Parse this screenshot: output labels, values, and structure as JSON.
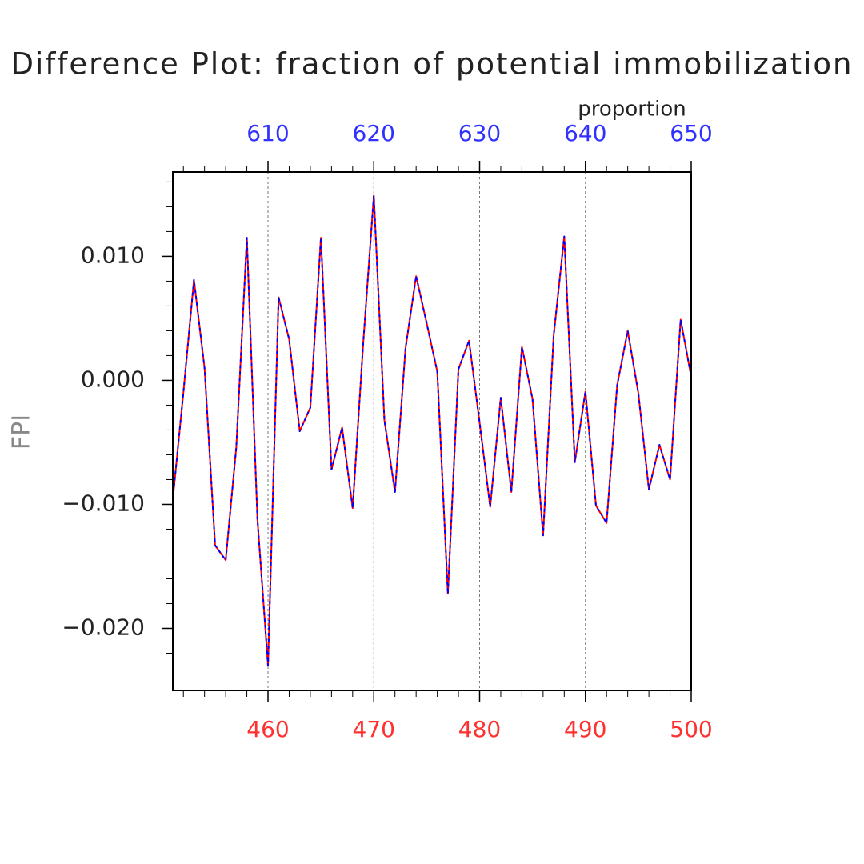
{
  "chart_data": {
    "type": "line",
    "title": "Difference Plot: fraction of potential immobilization",
    "ylabel": "FPI",
    "x2label": "proportion",
    "x": [
      451,
      452,
      453,
      454,
      455,
      456,
      457,
      458,
      459,
      460,
      461,
      462,
      463,
      464,
      465,
      466,
      467,
      468,
      469,
      470,
      471,
      472,
      473,
      474,
      475,
      476,
      477,
      478,
      479,
      480,
      481,
      482,
      483,
      484,
      485,
      486,
      487,
      488,
      489,
      490,
      491,
      492,
      493,
      494,
      495,
      496,
      497,
      498,
      499,
      500
    ],
    "series": [
      {
        "color": "#ff0000",
        "dash": false,
        "values": [
          -0.0096,
          -0.001,
          0.0081,
          0.001,
          -0.0133,
          -0.0145,
          -0.0054,
          0.0115,
          -0.0112,
          -0.023,
          0.0067,
          0.0033,
          -0.0041,
          -0.0022,
          0.0115,
          -0.0072,
          -0.0038,
          -0.0103,
          0.003,
          0.0149,
          -0.0032,
          -0.009,
          0.0026,
          0.0084,
          0.0046,
          0.0007,
          -0.0172,
          0.0009,
          0.0032,
          -0.0034,
          -0.0102,
          -0.0014,
          -0.009,
          0.0027,
          -0.0015,
          -0.0125,
          0.0036,
          0.0116,
          -0.0066,
          -0.0009,
          -0.0101,
          -0.0115,
          -0.0004,
          0.004,
          -0.001,
          -0.0088,
          -0.0052,
          -0.008,
          0.0049,
          0.0003
        ]
      },
      {
        "color": "#0000ff",
        "dash": true,
        "values": [
          -0.0096,
          -0.001,
          0.0081,
          0.001,
          -0.0133,
          -0.0145,
          -0.0054,
          0.0115,
          -0.0112,
          -0.023,
          0.0067,
          0.0033,
          -0.0041,
          -0.0022,
          0.0115,
          -0.0072,
          -0.0038,
          -0.0103,
          0.003,
          0.0149,
          -0.0032,
          -0.009,
          0.0026,
          0.0084,
          0.0046,
          0.0007,
          -0.0172,
          0.0009,
          0.0032,
          -0.0034,
          -0.0102,
          -0.0014,
          -0.009,
          0.0027,
          -0.0015,
          -0.0125,
          0.0036,
          0.0116,
          -0.0066,
          -0.0009,
          -0.0101,
          -0.0115,
          -0.0004,
          0.004,
          -0.001,
          -0.0088,
          -0.0052,
          -0.008,
          0.0049,
          0.0003
        ]
      }
    ],
    "xlim": [
      451,
      500
    ],
    "xticks": [
      460,
      470,
      480,
      490,
      500
    ],
    "xminorticks": [
      452,
      454,
      456,
      458,
      462,
      464,
      466,
      468,
      472,
      474,
      476,
      478,
      482,
      484,
      486,
      488,
      492,
      494,
      496,
      498
    ],
    "xtick_color": "#ff3030",
    "x2lim": [
      601,
      650
    ],
    "x2ticks": [
      610,
      620,
      630,
      640,
      650
    ],
    "x2minorticks": [
      602,
      604,
      606,
      608,
      612,
      614,
      616,
      618,
      622,
      624,
      626,
      628,
      632,
      634,
      636,
      638,
      642,
      644,
      646,
      648
    ],
    "x2tick_color": "#3030ff",
    "ylim": [
      -0.025,
      0.0168
    ],
    "yticks": [
      {
        "value": -0.02,
        "label": "−0.020"
      },
      {
        "value": -0.01,
        "label": "−0.010"
      },
      {
        "value": 0,
        "label": "0.000"
      },
      {
        "value": 0.01,
        "label": "0.010"
      }
    ],
    "yminorticks": [
      -0.024,
      -0.022,
      -0.018,
      -0.016,
      -0.014,
      -0.012,
      -0.008,
      -0.006,
      -0.004,
      -0.002,
      0.002,
      0.004,
      0.006,
      0.008,
      0.012,
      0.014,
      0.016
    ],
    "grid": true
  }
}
